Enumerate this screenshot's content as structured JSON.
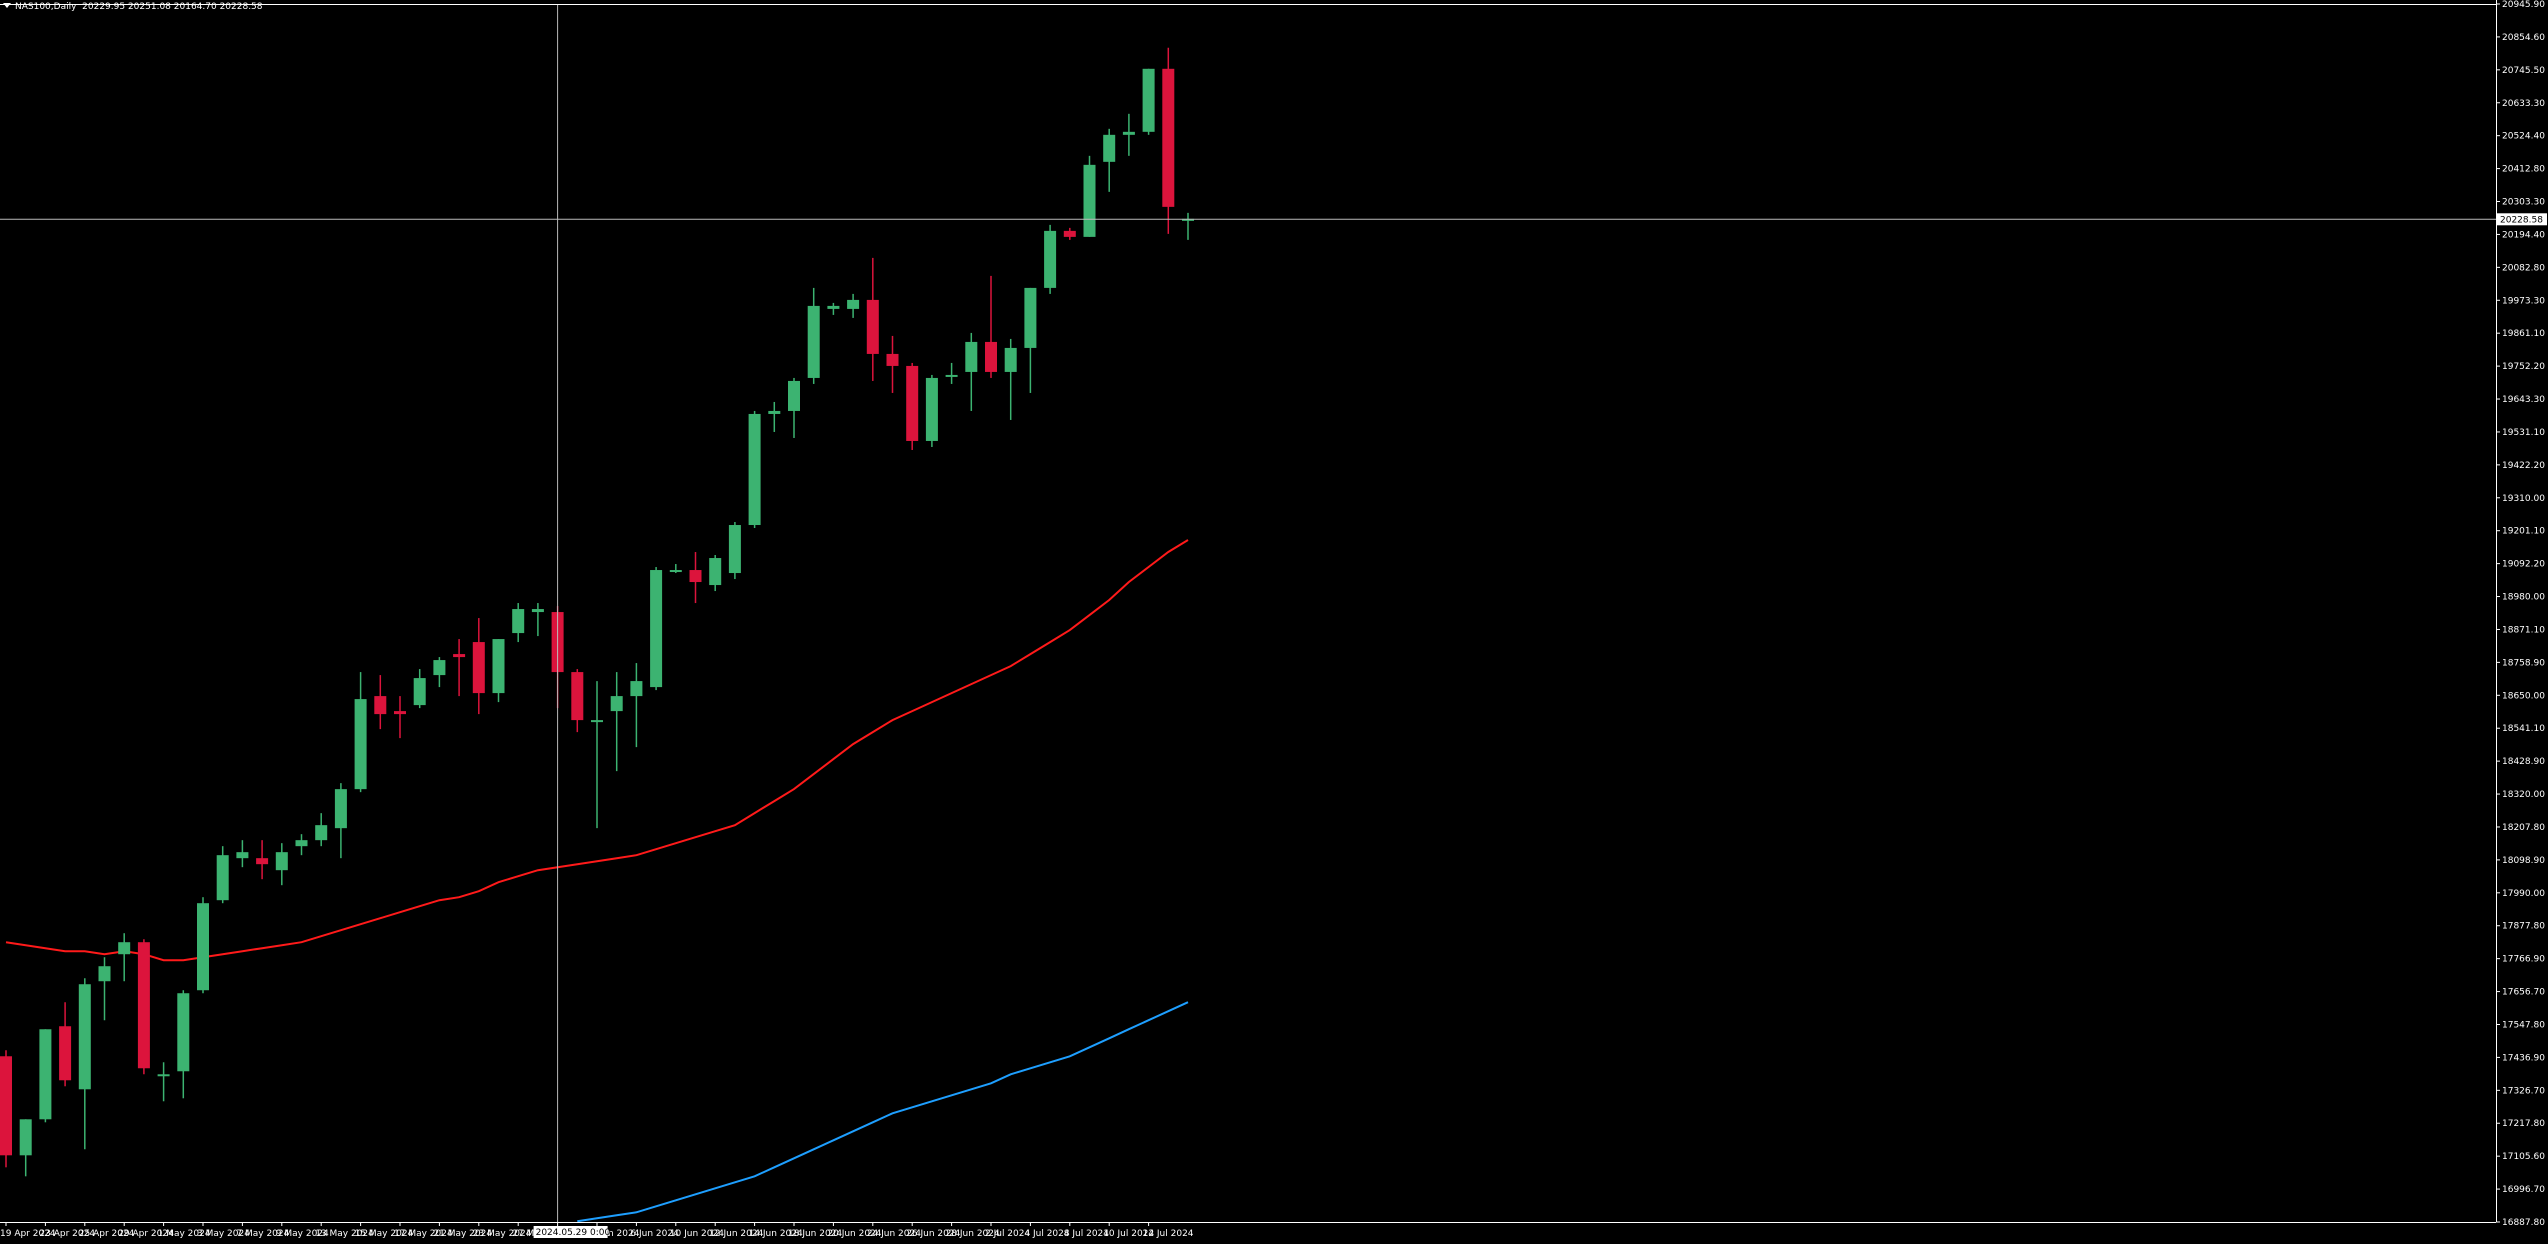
{
  "title": {
    "symbol_timeframe": "NAS100,Daily",
    "ohlc": "20229.95 20251.08 20164.70 20228.58"
  },
  "crosshair": {
    "price_label": "20228.58",
    "time_label": "2024.05.29 0:00"
  },
  "colors": {
    "background": "#000000",
    "bull": "#3cb371",
    "bear": "#dc143c",
    "ma_fast": "#ff1a1a",
    "ma_slow": "#1e9fff",
    "axis": "#ffffff"
  },
  "chart_data": {
    "type": "candlestick",
    "ylim": [
      16887.8,
      20945.9
    ],
    "y_tick_labels": [
      "20945.90",
      "20854.60",
      "20745.50",
      "20633.30",
      "20524.40",
      "20412.80",
      "20303.30",
      "20194.40",
      "20082.80",
      "19973.30",
      "19861.10",
      "19752.20",
      "19643.30",
      "19531.10",
      "19422.20",
      "19310.00",
      "19201.10",
      "19092.20",
      "18980.00",
      "18871.10",
      "18758.90",
      "18650.00",
      "18541.10",
      "18428.90",
      "18320.00",
      "18207.80",
      "18098.90",
      "17990.00",
      "17877.80",
      "17766.90",
      "17656.70",
      "17547.80",
      "17436.90",
      "17326.70",
      "17217.80",
      "17105.60",
      "16996.70",
      "16887.80"
    ],
    "x_tick_labels": [
      "19 Apr 2024",
      "23 Apr 2024",
      "25 Apr 2024",
      "29 Apr 2024",
      "1 May 2024",
      "3 May 2024",
      "7 May 2024",
      "9 May 2024",
      "13 May 2024",
      "15 May 2024",
      "17 May 2024",
      "21 May 2024",
      "23 May 2024",
      "27 May",
      "31 May 2024",
      "4 Jun 2024",
      "6 Jun 2024",
      "10 Jun 2024",
      "12 Jun 2024",
      "14 Jun 2024",
      "18 Jun 2024",
      "20 Jun 2024",
      "24 Jun 2024",
      "26 Jun 2024",
      "28 Jun 2024",
      "2 Jul 2024",
      "4 Jul 2024",
      "8 Jul 2024",
      "10 Jul 2024",
      "12 Jul 2024"
    ],
    "candles": [
      {
        "o": 17440,
        "h": 17460,
        "l": 17070,
        "c": 17110
      },
      {
        "o": 17110,
        "h": 17230,
        "l": 17040,
        "c": 17230
      },
      {
        "o": 17230,
        "h": 17530,
        "l": 17220,
        "c": 17530
      },
      {
        "o": 17540,
        "h": 17620,
        "l": 17340,
        "c": 17360
      },
      {
        "o": 17330,
        "h": 17700,
        "l": 17130,
        "c": 17680
      },
      {
        "o": 17690,
        "h": 17770,
        "l": 17560,
        "c": 17740
      },
      {
        "o": 17780,
        "h": 17850,
        "l": 17690,
        "c": 17820
      },
      {
        "o": 17820,
        "h": 17830,
        "l": 17380,
        "c": 17400
      },
      {
        "o": 17380,
        "h": 17420,
        "l": 17290,
        "c": 17380
      },
      {
        "o": 17390,
        "h": 17660,
        "l": 17300,
        "c": 17650
      },
      {
        "o": 17660,
        "h": 17970,
        "l": 17650,
        "c": 17950
      },
      {
        "o": 17960,
        "h": 18140,
        "l": 17950,
        "c": 18110
      },
      {
        "o": 18100,
        "h": 18160,
        "l": 18070,
        "c": 18120
      },
      {
        "o": 18100,
        "h": 18160,
        "l": 18030,
        "c": 18080
      },
      {
        "o": 18060,
        "h": 18150,
        "l": 18010,
        "c": 18120
      },
      {
        "o": 18140,
        "h": 18180,
        "l": 18110,
        "c": 18160
      },
      {
        "o": 18160,
        "h": 18250,
        "l": 18140,
        "c": 18210
      },
      {
        "o": 18200,
        "h": 18350,
        "l": 18100,
        "c": 18330
      },
      {
        "o": 18330,
        "h": 18720,
        "l": 18320,
        "c": 18630
      },
      {
        "o": 18640,
        "h": 18710,
        "l": 18530,
        "c": 18580
      },
      {
        "o": 18590,
        "h": 18640,
        "l": 18500,
        "c": 18580
      },
      {
        "o": 18610,
        "h": 18730,
        "l": 18600,
        "c": 18700
      },
      {
        "o": 18710,
        "h": 18770,
        "l": 18670,
        "c": 18760
      },
      {
        "o": 18780,
        "h": 18830,
        "l": 18640,
        "c": 18770
      },
      {
        "o": 18820,
        "h": 18900,
        "l": 18580,
        "c": 18650
      },
      {
        "o": 18650,
        "h": 18830,
        "l": 18620,
        "c": 18830
      },
      {
        "o": 18850,
        "h": 18950,
        "l": 18820,
        "c": 18930
      },
      {
        "o": 18920,
        "h": 18950,
        "l": 18840,
        "c": 18930
      },
      {
        "o": 18920,
        "h": 18940,
        "l": 18600,
        "c": 18720
      },
      {
        "o": 18720,
        "h": 18730,
        "l": 18520,
        "c": 18560
      },
      {
        "o": 18560,
        "h": 18690,
        "l": 18200,
        "c": 18560
      },
      {
        "o": 18590,
        "h": 18720,
        "l": 18390,
        "c": 18640
      },
      {
        "o": 18640,
        "h": 18750,
        "l": 18470,
        "c": 18690
      },
      {
        "o": 18670,
        "h": 19070,
        "l": 18660,
        "c": 19060
      },
      {
        "o": 19060,
        "h": 19080,
        "l": 19050,
        "c": 19060
      },
      {
        "o": 19060,
        "h": 19120,
        "l": 18950,
        "c": 19020
      },
      {
        "o": 19010,
        "h": 19110,
        "l": 18990,
        "c": 19100
      },
      {
        "o": 19050,
        "h": 19220,
        "l": 19030,
        "c": 19210
      },
      {
        "o": 19210,
        "h": 19590,
        "l": 19200,
        "c": 19580
      },
      {
        "o": 19580,
        "h": 19620,
        "l": 19520,
        "c": 19590
      },
      {
        "o": 19590,
        "h": 19700,
        "l": 19500,
        "c": 19690
      },
      {
        "o": 19700,
        "h": 20000,
        "l": 19680,
        "c": 19940
      },
      {
        "o": 19930,
        "h": 19950,
        "l": 19910,
        "c": 19940
      },
      {
        "o": 19930,
        "h": 19980,
        "l": 19900,
        "c": 19960
      },
      {
        "o": 19960,
        "h": 20100,
        "l": 19690,
        "c": 19780
      },
      {
        "o": 19780,
        "h": 19840,
        "l": 19650,
        "c": 19740
      },
      {
        "o": 19740,
        "h": 19750,
        "l": 19460,
        "c": 19490
      },
      {
        "o": 19490,
        "h": 19710,
        "l": 19470,
        "c": 19700
      },
      {
        "o": 19710,
        "h": 19750,
        "l": 19680,
        "c": 19710
      },
      {
        "o": 19720,
        "h": 19850,
        "l": 19590,
        "c": 19820
      },
      {
        "o": 19820,
        "h": 20040,
        "l": 19700,
        "c": 19720
      },
      {
        "o": 19720,
        "h": 19830,
        "l": 19560,
        "c": 19800
      },
      {
        "o": 19800,
        "h": 20000,
        "l": 19650,
        "c": 20000
      },
      {
        "o": 20000,
        "h": 20210,
        "l": 19980,
        "c": 20190
      },
      {
        "o": 20190,
        "h": 20200,
        "l": 20160,
        "c": 20170
      },
      {
        "o": 20170,
        "h": 20440,
        "l": 20170,
        "c": 20410
      },
      {
        "o": 20420,
        "h": 20530,
        "l": 20320,
        "c": 20510
      },
      {
        "o": 20510,
        "h": 20580,
        "l": 20440,
        "c": 20520
      },
      {
        "o": 20520,
        "h": 20730,
        "l": 20510,
        "c": 20730
      },
      {
        "o": 20730,
        "h": 20800,
        "l": 20180,
        "c": 20270
      },
      {
        "o": 20230,
        "h": 20250,
        "l": 20160,
        "c": 20230
      }
    ],
    "ma_fast": [
      17820,
      17810,
      17800,
      17790,
      17790,
      17780,
      17790,
      17780,
      17760,
      17760,
      17770,
      17780,
      17790,
      17800,
      17810,
      17820,
      17840,
      17860,
      17880,
      17900,
      17920,
      17940,
      17960,
      17970,
      17990,
      18020,
      18040,
      18060,
      18070,
      18080,
      18090,
      18100,
      18110,
      18130,
      18150,
      18170,
      18190,
      18210,
      18250,
      18290,
      18330,
      18380,
      18430,
      18480,
      18520,
      18560,
      18590,
      18620,
      18650,
      18680,
      18710,
      18740,
      18780,
      18820,
      18860,
      18910,
      18960,
      19020,
      19070,
      19120,
      19160
    ],
    "ma_slow": [
      16890,
      16900,
      16910,
      16920,
      16940,
      16960,
      16980,
      17000,
      17020,
      17040,
      17070,
      17100,
      17130,
      17160,
      17190,
      17220,
      17250,
      17270,
      17290,
      17310,
      17330,
      17350,
      17380,
      17400,
      17420,
      17440,
      17470,
      17500,
      17530,
      17560,
      17590,
      17620
    ],
    "ma_slow_start_index": 29
  }
}
